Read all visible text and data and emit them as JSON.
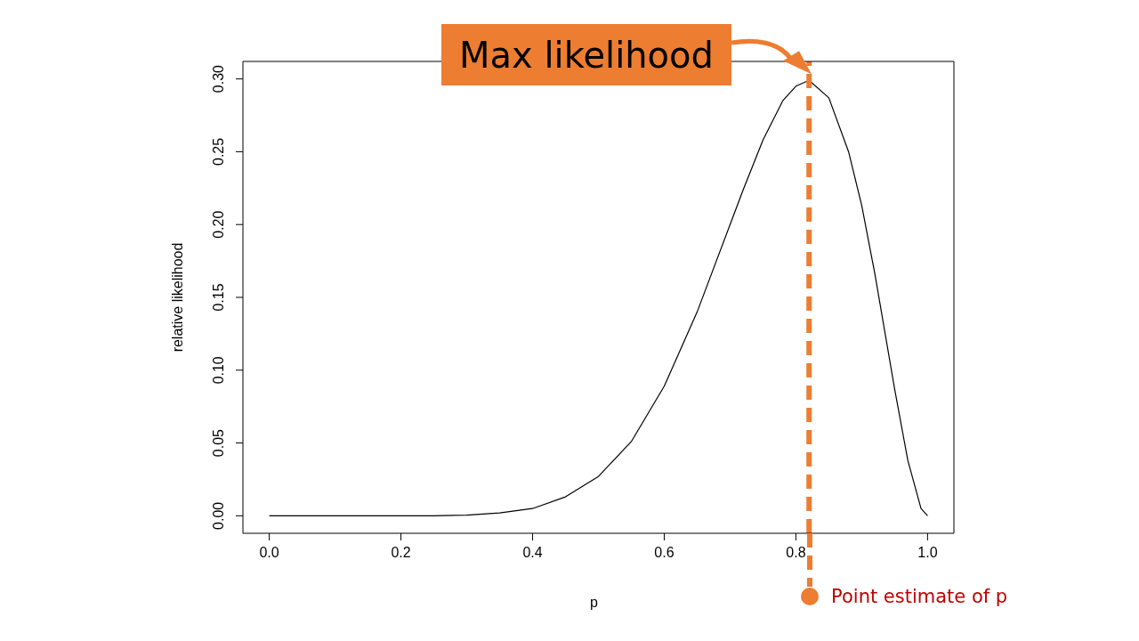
{
  "chart_data": {
    "type": "line",
    "xlabel": "p",
    "ylabel": "relative likelihood",
    "x": [
      0,
      0.05,
      0.1,
      0.15,
      0.2,
      0.25,
      0.3,
      0.35,
      0.4,
      0.45,
      0.5,
      0.55,
      0.6,
      0.65,
      0.7,
      0.72,
      0.75,
      0.78,
      0.8,
      0.82,
      0.85,
      0.88,
      0.9,
      0.92,
      0.95,
      0.97,
      0.99,
      1.0
    ],
    "values": [
      0,
      0,
      0,
      0,
      0,
      0,
      0.0005,
      0.002,
      0.005,
      0.013,
      0.027,
      0.051,
      0.089,
      0.14,
      0.2,
      0.224,
      0.258,
      0.285,
      0.295,
      0.299,
      0.287,
      0.25,
      0.213,
      0.166,
      0.087,
      0.038,
      0.005,
      0
    ],
    "color": "#000000",
    "xlim": [
      -0.04,
      1.04
    ],
    "ylim": [
      -0.012,
      0.312
    ],
    "xticks": [
      {
        "value": 0,
        "label": "0.0"
      },
      {
        "value": 0.2,
        "label": "0.2"
      },
      {
        "value": 0.4,
        "label": "0.4"
      },
      {
        "value": 0.6,
        "label": "0.6"
      },
      {
        "value": 0.8,
        "label": "0.8"
      },
      {
        "value": 1,
        "label": "1.0"
      }
    ],
    "yticks": [
      {
        "value": 0,
        "label": "0.00"
      },
      {
        "value": 0.05,
        "label": "0.05"
      },
      {
        "value": 0.1,
        "label": "0.10"
      },
      {
        "value": 0.15,
        "label": "0.15"
      },
      {
        "value": 0.2,
        "label": "0.20"
      },
      {
        "value": 0.25,
        "label": "0.25"
      },
      {
        "value": 0.3,
        "label": "0.30"
      }
    ],
    "grid": false,
    "annotations": [
      {
        "text": "Max likelihood",
        "x": 0.82,
        "y": 0.299
      }
    ],
    "ref_lines": [
      {
        "axis": "x",
        "value": 0.82,
        "label": "Point estimate of p",
        "color": "#ed7d31",
        "line_style": "dashed"
      }
    ]
  }
}
